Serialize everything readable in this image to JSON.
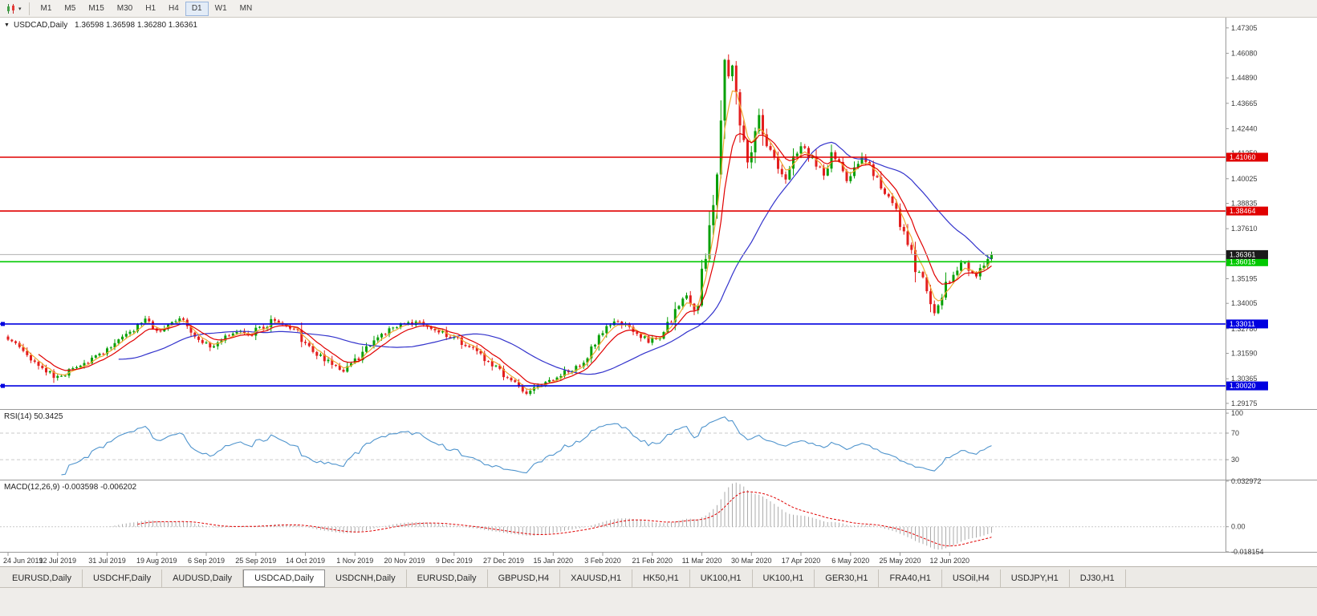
{
  "toolbar": {
    "timeframes": [
      "M1",
      "M5",
      "M15",
      "M30",
      "H1",
      "H4",
      "D1",
      "W1",
      "MN"
    ],
    "active_timeframe": "D1"
  },
  "chart": {
    "title": "USDCAD,Daily",
    "ohlc_text": "1.36598 1.36598 1.36280 1.36361",
    "open": "1.36598",
    "high": "1.36598",
    "low": "1.36280",
    "close": "1.36361"
  },
  "rsi": {
    "label": "RSI(14) 50.3425",
    "value": "50.3425",
    "levels": [
      70,
      30
    ],
    "scale": [
      {
        "text": "100",
        "value": 100
      },
      {
        "text": "70",
        "value": 70
      },
      {
        "text": "30",
        "value": 30
      }
    ]
  },
  "macd": {
    "label": "MACD(12,26,9) -0.003598 -0.006202",
    "values": "-0.003598 -0.006202",
    "scale": [
      {
        "text": "0.032972",
        "value": 0.032972
      },
      {
        "text": "0.00",
        "value": 0
      },
      {
        "text": "-0.018154",
        "value": -0.018154
      }
    ]
  },
  "price_scale": {
    "labels": [
      "1.47305",
      "1.46080",
      "1.44890",
      "1.43665",
      "1.42440",
      "1.41250",
      "1.40025",
      "1.38835",
      "1.37610",
      "1.36385",
      "1.35195",
      "1.34005",
      "1.32780",
      "1.31590",
      "1.30365",
      "1.29175"
    ]
  },
  "levels": [
    {
      "label": "1.41060",
      "price": 1.4106,
      "color": "#E00000",
      "handle": false
    },
    {
      "label": "1.38464",
      "price": 1.38464,
      "color": "#E00000",
      "handle": false
    },
    {
      "label": "1.36015",
      "price": 1.36015,
      "color": "#00C800",
      "handle": false
    },
    {
      "label": "1.33011",
      "price": 1.33011,
      "color": "#0000E0",
      "handle": true
    },
    {
      "label": "1.30020",
      "price": 1.3002,
      "color": "#0000E0",
      "handle": true
    }
  ],
  "current_price": {
    "label": "1.36361",
    "value": 1.36361
  },
  "dates": [
    "24 Jun 2019",
    "12 Jul 2019",
    "31 Jul 2019",
    "19 Aug 2019",
    "6 Sep 2019",
    "25 Sep 2019",
    "14 Oct 2019",
    "1 Nov 2019",
    "20 Nov 2019",
    "9 Dec 2019",
    "27 Dec 2019",
    "15 Jan 2020",
    "3 Feb 2020",
    "21 Feb 2020",
    "11 Mar 2020",
    "30 Mar 2020",
    "17 Apr 2020",
    "6 May 2020",
    "25 May 2020",
    "12 Jun 2020"
  ],
  "tabs": {
    "active_index": 3,
    "items": [
      "EURUSD,Daily",
      "USDCHF,Daily",
      "AUDUSD,Daily",
      "USDCAD,Daily",
      "USDCNH,Daily",
      "EURUSD,Daily",
      "GBPUSD,H4",
      "XAUUSD,H1",
      "HK50,H1",
      "UK100,H1",
      "UK100,H1",
      "GER30,H1",
      "FRA40,H1",
      "USOil,H4",
      "USDJPY,H1",
      "DJ30,H1"
    ]
  },
  "colors": {
    "bull": "#07A007",
    "bear": "#E31E1E",
    "ma_fast": "#F0A830",
    "ma_mid": "#E00000",
    "ma_slow": "#3333CC",
    "rsi_line": "#4F94CD",
    "rsi_level": "#C9C9C9",
    "macd_bar": "#ABABAB",
    "macd_signal": "#E00000",
    "current_line": "#B0B0B0",
    "current_box": "#1A1A1A",
    "separator": "#9A9A9A",
    "scale_text": "#3A3A3A"
  },
  "chart_data": {
    "type": "candlestick",
    "symbol": "USDCAD",
    "timeframe": "Daily",
    "ylim": [
      1.289,
      1.478
    ],
    "candle_count": 259,
    "close_anchors": [
      [
        0,
        1.3225
      ],
      [
        4,
        1.316
      ],
      [
        8,
        1.3095
      ],
      [
        12,
        1.305
      ],
      [
        14,
        1.304
      ],
      [
        17,
        1.3085
      ],
      [
        21,
        1.3125
      ],
      [
        25,
        1.3165
      ],
      [
        29,
        1.3215
      ],
      [
        33,
        1.328
      ],
      [
        36,
        1.332
      ],
      [
        39,
        1.327
      ],
      [
        42,
        1.3295
      ],
      [
        45,
        1.332
      ],
      [
        48,
        1.327
      ],
      [
        51,
        1.322
      ],
      [
        53,
        1.3185
      ],
      [
        56,
        1.323
      ],
      [
        60,
        1.327
      ],
      [
        64,
        1.3255
      ],
      [
        67,
        1.329
      ],
      [
        70,
        1.3325
      ],
      [
        73,
        1.33
      ],
      [
        76,
        1.3255
      ],
      [
        79,
        1.319
      ],
      [
        82,
        1.3145
      ],
      [
        85,
        1.3105
      ],
      [
        88,
        1.3075
      ],
      [
        91,
        1.312
      ],
      [
        94,
        1.318
      ],
      [
        97,
        1.323
      ],
      [
        100,
        1.327
      ],
      [
        104,
        1.33
      ],
      [
        107,
        1.3305
      ],
      [
        110,
        1.3285
      ],
      [
        113,
        1.3265
      ],
      [
        116,
        1.324
      ],
      [
        119,
        1.3215
      ],
      [
        122,
        1.318
      ],
      [
        125,
        1.3135
      ],
      [
        128,
        1.309
      ],
      [
        131,
        1.304
      ],
      [
        134,
        1.299
      ],
      [
        136,
        1.2965
      ],
      [
        139,
        1.3
      ],
      [
        142,
        1.303
      ],
      [
        145,
        1.306
      ],
      [
        148,
        1.3075
      ],
      [
        151,
        1.311
      ],
      [
        154,
        1.32
      ],
      [
        157,
        1.328
      ],
      [
        159,
        1.331
      ],
      [
        162,
        1.3295
      ],
      [
        165,
        1.3255
      ],
      [
        168,
        1.3215
      ],
      [
        171,
        1.324
      ],
      [
        174,
        1.333
      ],
      [
        176,
        1.34
      ],
      [
        178,
        1.343
      ],
      [
        180,
        1.337
      ],
      [
        181,
        1.342
      ],
      [
        182,
        1.353
      ],
      [
        183,
        1.365
      ],
      [
        184,
        1.378
      ],
      [
        185,
        1.39
      ],
      [
        186,
        1.405
      ],
      [
        187,
        1.425
      ],
      [
        188,
        1.46
      ],
      [
        189,
        1.448
      ],
      [
        190,
        1.453
      ],
      [
        191,
        1.44
      ],
      [
        192,
        1.428
      ],
      [
        193,
        1.418
      ],
      [
        194,
        1.409
      ],
      [
        195,
        1.415
      ],
      [
        196,
        1.423
      ],
      [
        197,
        1.43
      ],
      [
        198,
        1.425
      ],
      [
        199,
        1.418
      ],
      [
        200,
        1.412
      ],
      [
        202,
        1.406
      ],
      [
        204,
        1.401
      ],
      [
        206,
        1.409
      ],
      [
        208,
        1.416
      ],
      [
        210,
        1.412
      ],
      [
        212,
        1.408
      ],
      [
        214,
        1.403
      ],
      [
        216,
        1.413
      ],
      [
        218,
        1.408
      ],
      [
        220,
        1.398
      ],
      [
        222,
        1.404
      ],
      [
        224,
        1.411
      ],
      [
        226,
        1.406
      ],
      [
        228,
        1.399
      ],
      [
        230,
        1.394
      ],
      [
        232,
        1.389
      ],
      [
        234,
        1.38
      ],
      [
        236,
        1.369
      ],
      [
        238,
        1.358
      ],
      [
        240,
        1.35
      ],
      [
        242,
        1.34
      ],
      [
        243,
        1.336
      ],
      [
        244,
        1.339
      ],
      [
        245,
        1.343
      ],
      [
        246,
        1.348
      ],
      [
        248,
        1.354
      ],
      [
        250,
        1.359
      ],
      [
        251,
        1.361
      ],
      [
        252,
        1.357
      ],
      [
        253,
        1.354
      ],
      [
        254,
        1.352
      ],
      [
        255,
        1.356
      ],
      [
        256,
        1.36
      ],
      [
        257,
        1.3625
      ],
      [
        258,
        1.3636
      ]
    ],
    "moving_averages": [
      {
        "name": "fast",
        "type": "ema",
        "period": 4,
        "color_key": "ma_fast"
      },
      {
        "name": "medium",
        "type": "ema",
        "period": 9,
        "color_key": "ma_mid"
      },
      {
        "name": "slow",
        "type": "sma",
        "period": 30,
        "color_key": "ma_slow"
      }
    ],
    "rsi_period": 14,
    "rsi_range": [
      0,
      105
    ],
    "macd_params": [
      12,
      26,
      9
    ],
    "macd_range": [
      -0.0182,
      0.0335
    ]
  }
}
